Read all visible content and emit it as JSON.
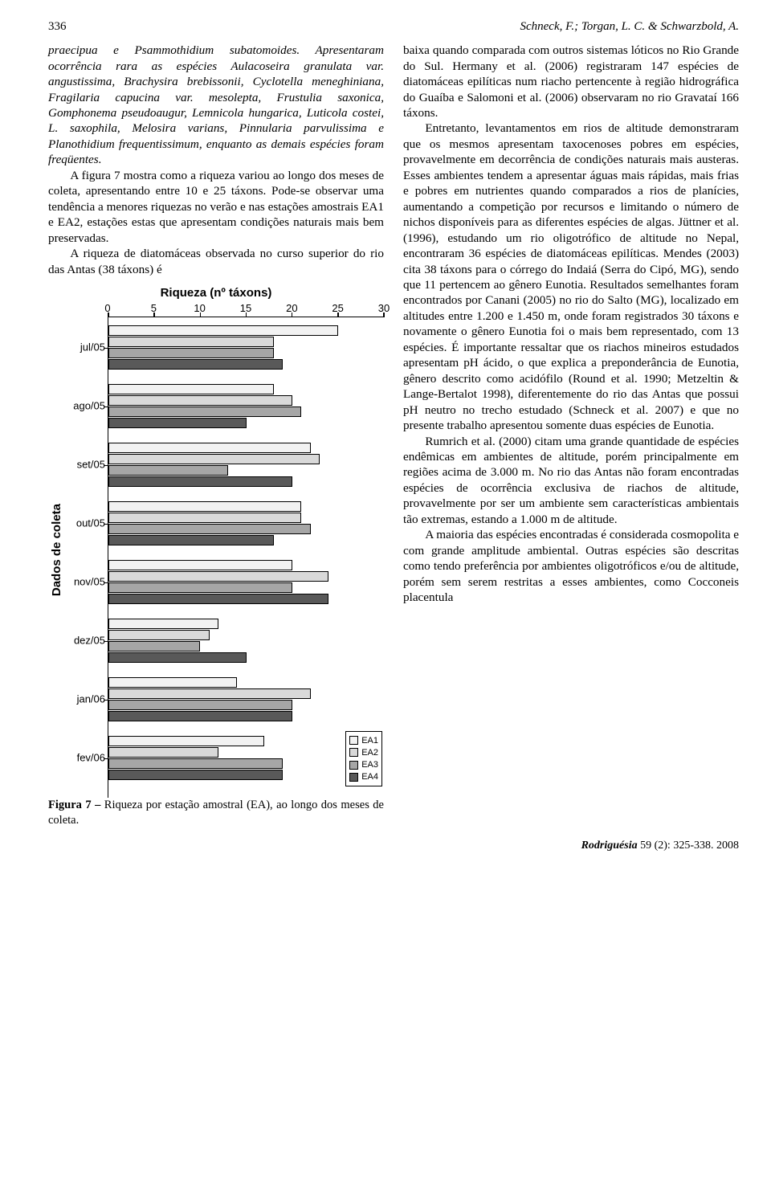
{
  "header": {
    "page_number": "336",
    "authors": "Schneck, F.; Torgan, L. C. & Schwarzbold, A."
  },
  "left_column": {
    "p1": "praecipua e Psammothidium subatomoides. Apresentaram ocorrência rara as espécies Aulacoseira granulata var. angustissima, Brachysira brebissonii, Cyclotella meneghiniana, Fragilaria capucina var. mesolepta, Frustulia saxonica, Gomphonema pseudoaugur, Lemnicola hungarica, Luticola costei, L. saxophila, Melosira varians, Pinnularia parvulissima e Planothidium frequentissimum, enquanto as demais espécies foram freqüentes.",
    "p2": "A figura 7 mostra como a riqueza variou ao longo dos meses de coleta, apresentando entre 10 e 25 táxons. Pode-se observar uma tendência a menores riquezas no verão e nas estações amostrais EA1 e EA2, estações estas que apresentam condições naturais mais bem preservadas.",
    "p3": "A riqueza de diatomáceas observada no curso superior do rio das Antas (38 táxons) é"
  },
  "right_column": {
    "p1": "baixa quando comparada com outros sistemas lóticos no Rio Grande do Sul. Hermany et al. (2006) registraram 147 espécies de diatomáceas epilíticas num riacho pertencente à região hidrográfica do Guaíba e Salomoni et al. (2006) observaram no rio Gravataí 166 táxons.",
    "p2": "Entretanto, levantamentos em rios de altitude demonstraram que os mesmos apresentam taxocenoses pobres em espécies, provavelmente em decorrência de condições naturais mais austeras. Esses ambientes tendem a apresentar águas mais rápidas, mais frias e pobres em nutrientes quando comparados a rios de planícies, aumentando a competição por recursos e limitando o número de nichos disponíveis para as diferentes espécies de algas. Jüttner et al. (1996), estudando um rio oligotrófico de altitude no Nepal, encontraram 36 espécies de diatomáceas epilíticas. Mendes (2003) cita 38 táxons para o córrego do Indaiá (Serra do Cipó, MG), sendo que 11 pertencem ao gênero Eunotia. Resultados semelhantes foram encontrados por Canani (2005) no rio do Salto (MG), localizado em altitudes entre 1.200 e 1.450 m, onde foram registrados 30 táxons e novamente o gênero Eunotia foi o mais bem representado, com 13 espécies. É importante ressaltar que os riachos mineiros estudados apresentam pH ácido, o que explica a preponderância de Eunotia, gênero descrito como acidófilo (Round et al. 1990; Metzeltin & Lange-Bertalot 1998), diferentemente do rio das Antas que possui pH neutro no trecho estudado (Schneck et al. 2007) e que no presente trabalho apresentou somente duas espécies de Eunotia.",
    "p3": "Rumrich et al. (2000) citam uma grande quantidade de espécies endêmicas em ambientes de altitude, porém principalmente em regiões acima de 3.000 m. No rio das Antas não foram encontradas espécies de ocorrência exclusiva de riachos de altitude, provavelmente por ser um ambiente sem características ambientais tão extremas, estando a 1.000 m de altitude.",
    "p4": "A maioria das espécies encontradas é considerada cosmopolita e com grande amplitude ambiental. Outras espécies são descritas como tendo preferência por ambientes oligotróficos e/ou de altitude, porém sem serem restritas a esses ambientes, como Cocconeis placentula"
  },
  "chart": {
    "type": "bar",
    "title": "Riqueza (nº táxons)",
    "ylabel": "Dados de coleta",
    "xlim": [
      0,
      30
    ],
    "xtick_step": 5,
    "xticks": [
      "0",
      "5",
      "10",
      "15",
      "20",
      "25",
      "30"
    ],
    "series": [
      {
        "name": "EA1",
        "color": "#f2f2f2"
      },
      {
        "name": "EA2",
        "color": "#d9d9d9"
      },
      {
        "name": "EA3",
        "color": "#a6a6a6"
      },
      {
        "name": "EA4",
        "color": "#595959"
      }
    ],
    "months": [
      {
        "label": "jul/05",
        "values": [
          25,
          18,
          18,
          19
        ]
      },
      {
        "label": "ago/05",
        "values": [
          18,
          20,
          21,
          15
        ]
      },
      {
        "label": "set/05",
        "values": [
          22,
          23,
          13,
          20
        ]
      },
      {
        "label": "out/05",
        "values": [
          21,
          21,
          22,
          18
        ]
      },
      {
        "label": "nov/05",
        "values": [
          20,
          24,
          20,
          24
        ]
      },
      {
        "label": "dez/05",
        "values": [
          12,
          11,
          10,
          15
        ]
      },
      {
        "label": "jan/06",
        "values": [
          14,
          22,
          20,
          20
        ]
      },
      {
        "label": "fev/06",
        "values": [
          17,
          12,
          19,
          19
        ]
      }
    ]
  },
  "caption": {
    "lead": "Figura 7 – ",
    "text": "Riqueza por estação amostral (EA), ao longo dos meses de coleta."
  },
  "footer": {
    "journal": "Rodriguésia",
    "citation": " 59 (2): 325-338. 2008"
  }
}
